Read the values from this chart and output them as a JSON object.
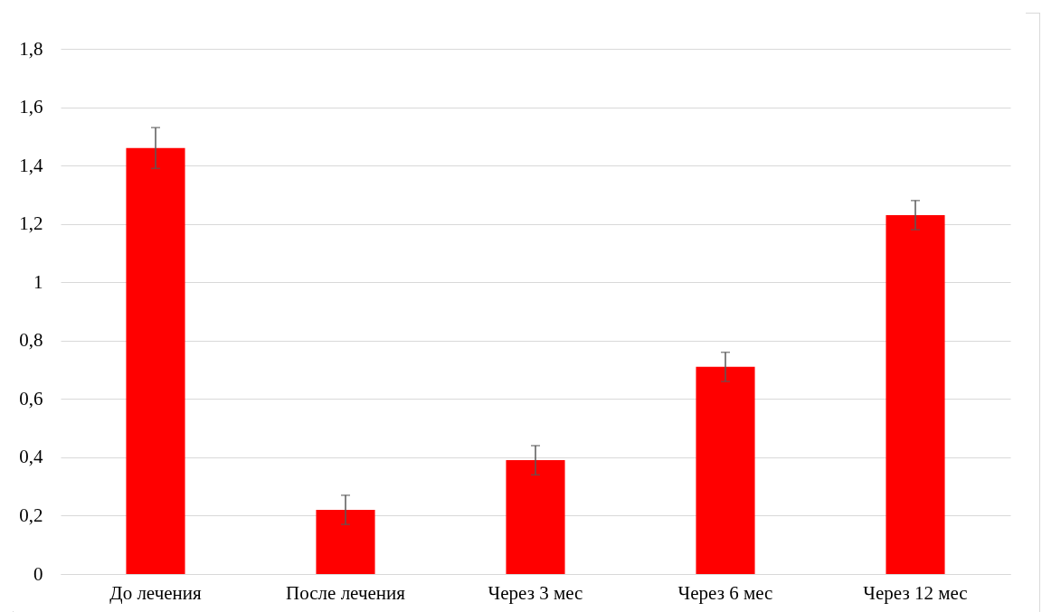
{
  "chart_data": {
    "type": "bar",
    "categories": [
      "До лечения",
      "После лечения",
      "Через 3 мес",
      "Через 6 мес",
      "Через 12 мес"
    ],
    "values": [
      1.46,
      0.22,
      0.39,
      0.71,
      1.23
    ],
    "errors": [
      0.07,
      0.05,
      0.05,
      0.05,
      0.05
    ],
    "color": "#ff0000",
    "ylim": [
      0,
      1.8
    ],
    "yticks": [
      0,
      {
        "value": 0.2,
        "label": "0,2"
      },
      {
        "value": 0.4,
        "label": "0,4"
      },
      {
        "value": 0.6,
        "label": "0,6"
      },
      {
        "value": 0.8,
        "label": "0,8"
      },
      1,
      {
        "value": 1.2,
        "label": "1,2"
      },
      {
        "value": 1.4,
        "label": "1,4"
      },
      {
        "value": 1.6,
        "label": "1,6"
      },
      {
        "value": 1.8,
        "label": "1,8"
      }
    ],
    "grid": true
  }
}
